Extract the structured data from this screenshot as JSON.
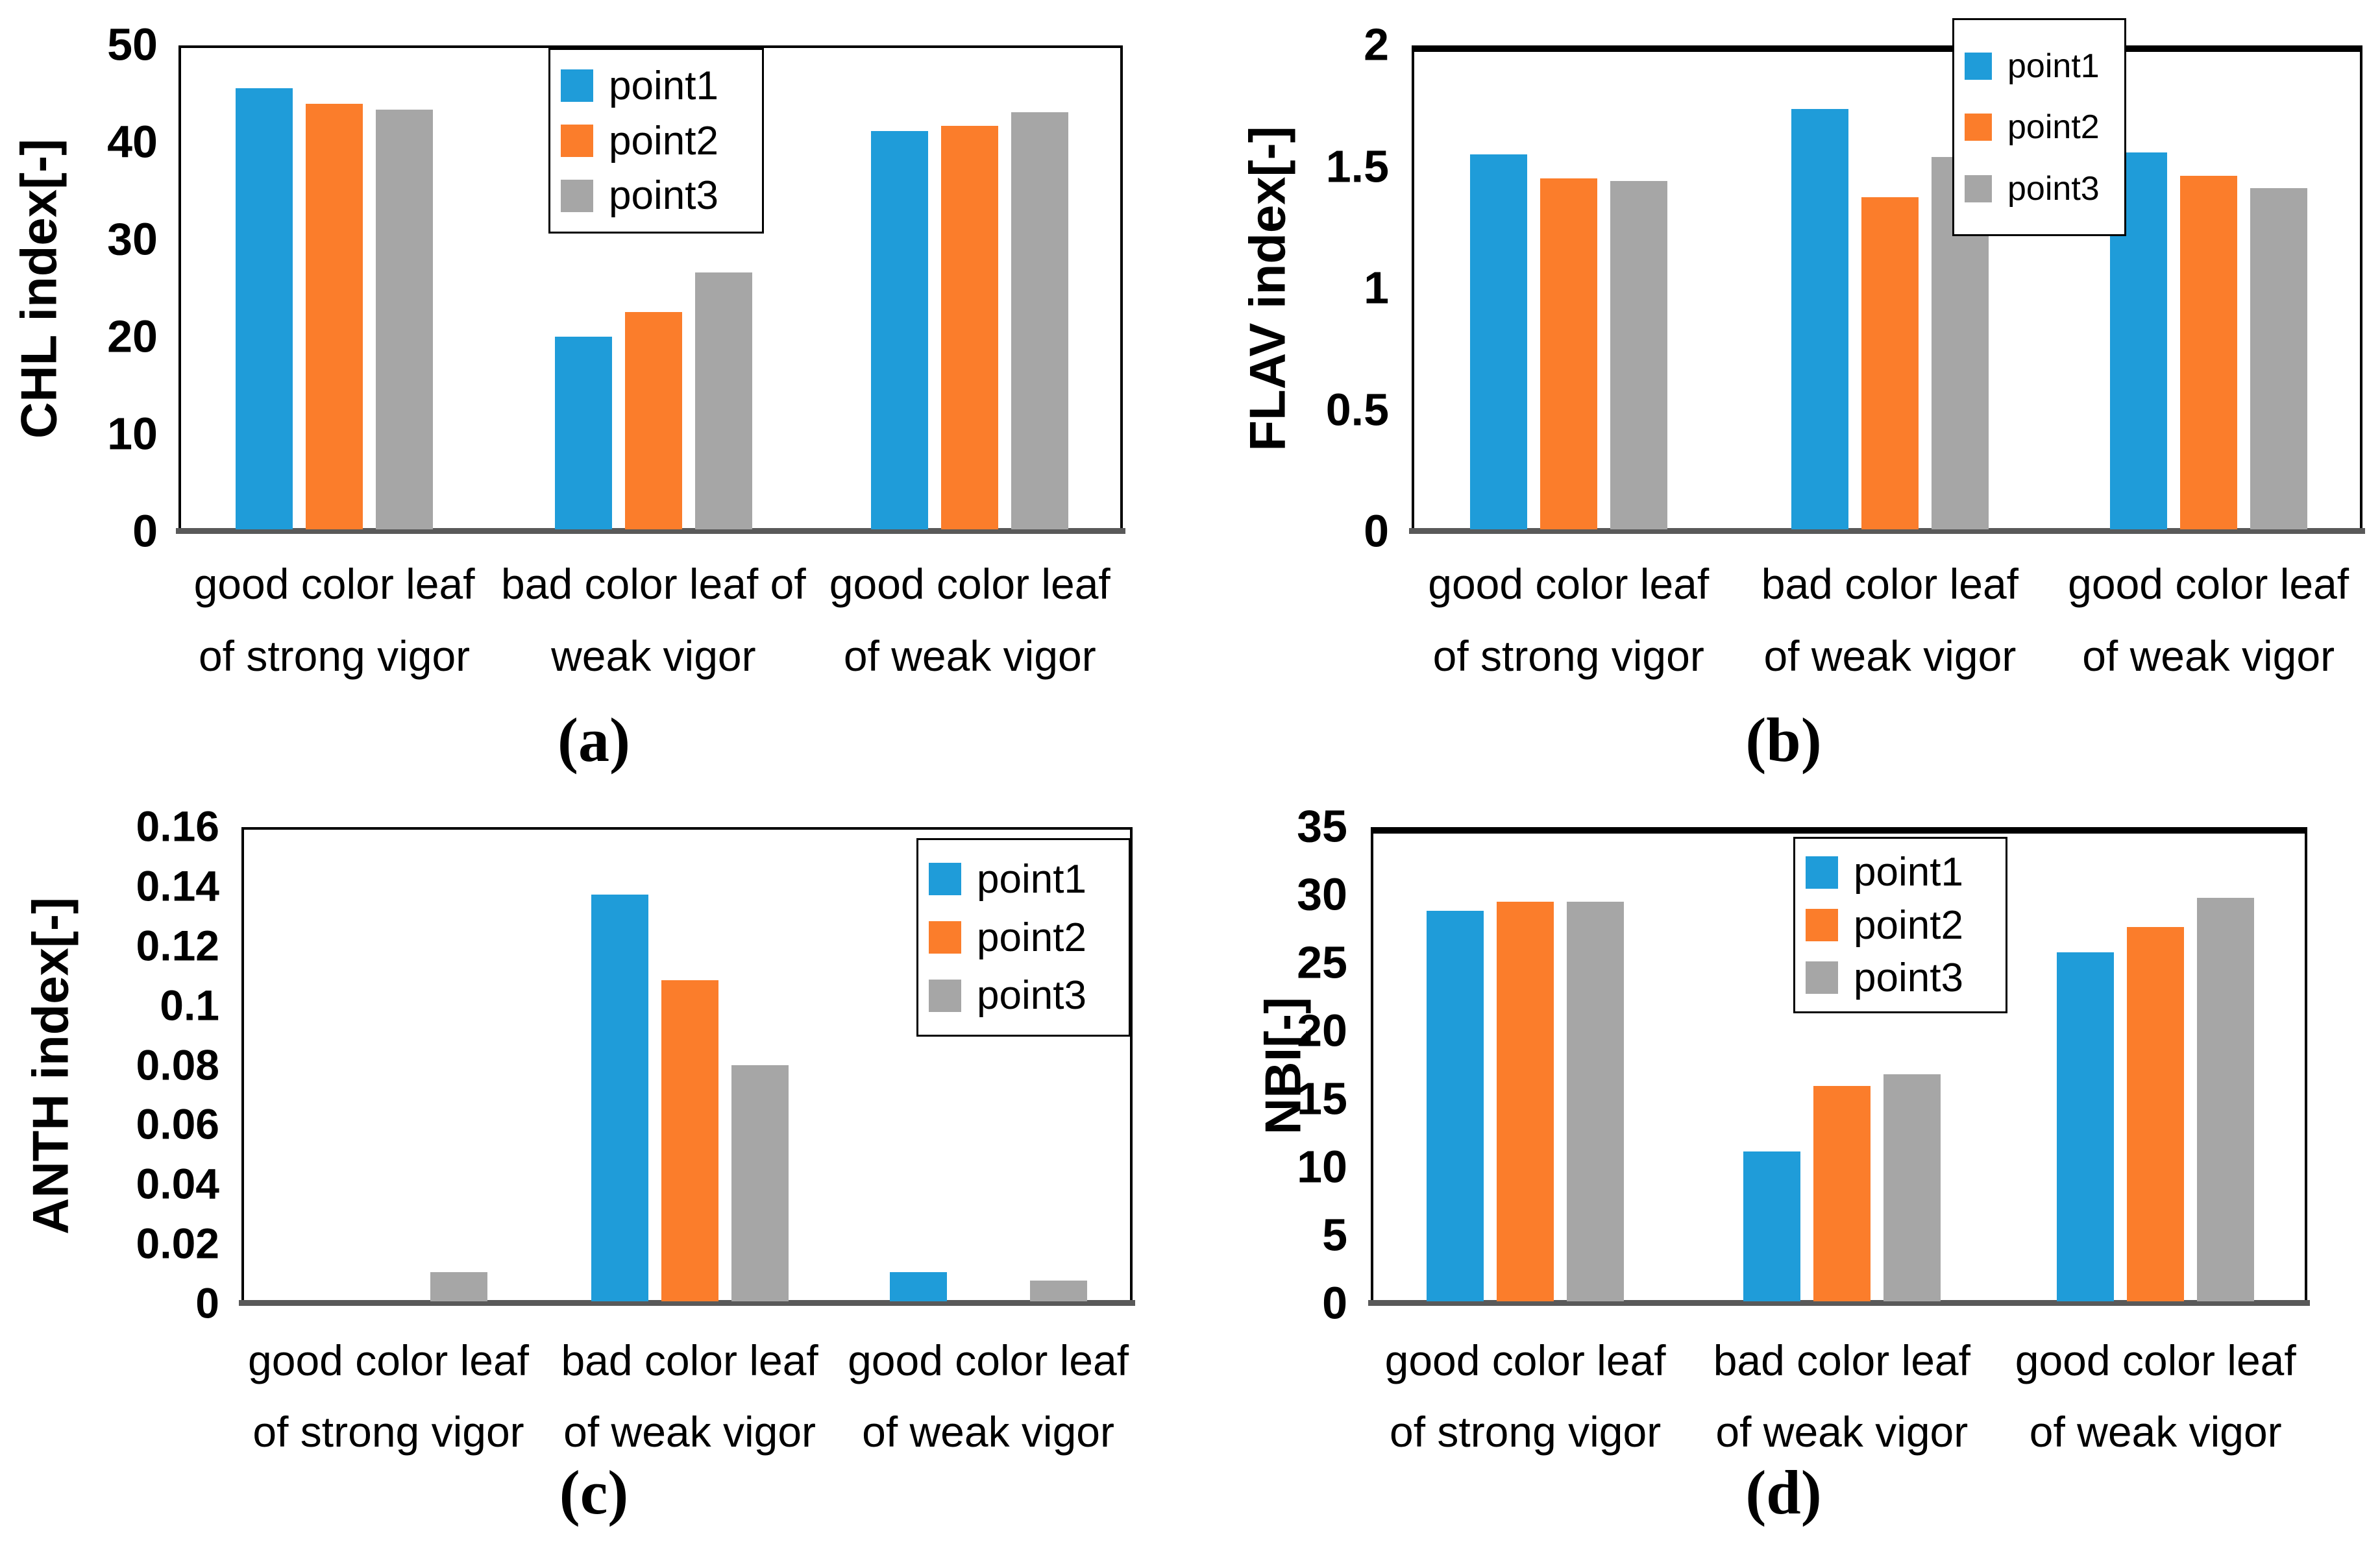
{
  "figure": {
    "background": "#ffffff",
    "axis_border_color": "#000000",
    "baseline_color": "#595959",
    "series_names": [
      "point1",
      "point2",
      "point3"
    ],
    "series_colors": [
      "#1f9cd9",
      "#fb7d2b",
      "#a6a6a6"
    ],
    "panel_letters": [
      "(a)",
      "(b)",
      "(c)",
      "(d)"
    ]
  },
  "chart_data": [
    {
      "type": "bar",
      "panel_label": "(a)",
      "title": "",
      "xlabel": "",
      "ylabel": "CHL index[-]",
      "ylim": [
        0,
        50
      ],
      "grid": false,
      "legend_position": "top-center-inside",
      "ytick_values": [
        0,
        10,
        20,
        30,
        40,
        50
      ],
      "ytick_labels": [
        "0",
        "10",
        "20",
        "30",
        "40",
        "50"
      ],
      "categories": [
        [
          "good color leaf",
          "of strong vigor"
        ],
        [
          "bad color leaf of",
          "weak vigor"
        ],
        [
          "good color leaf",
          "of weak vigor"
        ]
      ],
      "series": [
        {
          "name": "point1",
          "values": [
            45.8,
            20.0,
            41.4
          ]
        },
        {
          "name": "point2",
          "values": [
            44.2,
            22.6,
            41.9
          ]
        },
        {
          "name": "point3",
          "values": [
            43.6,
            26.7,
            43.3
          ]
        }
      ]
    },
    {
      "type": "bar",
      "panel_label": "(b)",
      "title": "",
      "xlabel": "",
      "ylabel": "FLAV index[-]",
      "ylim": [
        0,
        2
      ],
      "grid": false,
      "legend_position": "top-right-overlap",
      "ytick_values": [
        0,
        0.5,
        1,
        1.5,
        2
      ],
      "ytick_labels": [
        "0",
        "0.5",
        "1",
        "1.5",
        "2"
      ],
      "categories": [
        [
          "good color leaf",
          "of strong vigor"
        ],
        [
          "bad color leaf",
          "of weak vigor"
        ],
        [
          "good color leaf",
          "of weak vigor"
        ]
      ],
      "series": [
        {
          "name": "point1",
          "values": [
            1.57,
            1.76,
            1.58
          ]
        },
        {
          "name": "point2",
          "values": [
            1.47,
            1.39,
            1.48
          ]
        },
        {
          "name": "point3",
          "values": [
            1.46,
            1.56,
            1.43
          ]
        }
      ]
    },
    {
      "type": "bar",
      "panel_label": "(c)",
      "title": "",
      "xlabel": "",
      "ylabel": "ANTH index[-]",
      "ylim": [
        0,
        0.16
      ],
      "grid": false,
      "legend_position": "top-right-inside",
      "ytick_values": [
        0,
        0.02,
        0.04,
        0.06,
        0.08,
        0.1,
        0.12,
        0.14,
        0.16
      ],
      "ytick_labels": [
        "0",
        "0.02",
        "0.04",
        "0.06",
        "0.08",
        "0.1",
        "0.12",
        "0.14",
        "0.16"
      ],
      "categories": [
        [
          "good color leaf",
          "of strong vigor"
        ],
        [
          "bad color leaf",
          "of weak vigor"
        ],
        [
          "good color leaf",
          "of weak vigor"
        ]
      ],
      "series": [
        {
          "name": "point1",
          "values": [
            0,
            0.138,
            0.01
          ]
        },
        {
          "name": "point2",
          "values": [
            0,
            0.109,
            0
          ]
        },
        {
          "name": "point3",
          "values": [
            0.01,
            0.08,
            0.007
          ]
        }
      ]
    },
    {
      "type": "bar",
      "panel_label": "(d)",
      "title": "",
      "xlabel": "",
      "ylabel": "NBI[-]",
      "ylim": [
        0,
        35
      ],
      "grid": false,
      "legend_position": "top-center-right-inside",
      "ytick_values": [
        0,
        5,
        10,
        15,
        20,
        25,
        30,
        35
      ],
      "ytick_labels": [
        "0",
        "5",
        "10",
        "15",
        "20",
        "25",
        "30",
        "35"
      ],
      "categories": [
        [
          "good color leaf",
          "of strong vigor"
        ],
        [
          "bad color leaf",
          "of weak vigor"
        ],
        [
          "good color leaf",
          "of weak vigor"
        ]
      ],
      "series": [
        {
          "name": "point1",
          "values": [
            29.2,
            11.2,
            26.1
          ]
        },
        {
          "name": "point2",
          "values": [
            29.9,
            16.1,
            28.0
          ]
        },
        {
          "name": "point3",
          "values": [
            29.9,
            17.0,
            30.2
          ]
        }
      ]
    }
  ]
}
